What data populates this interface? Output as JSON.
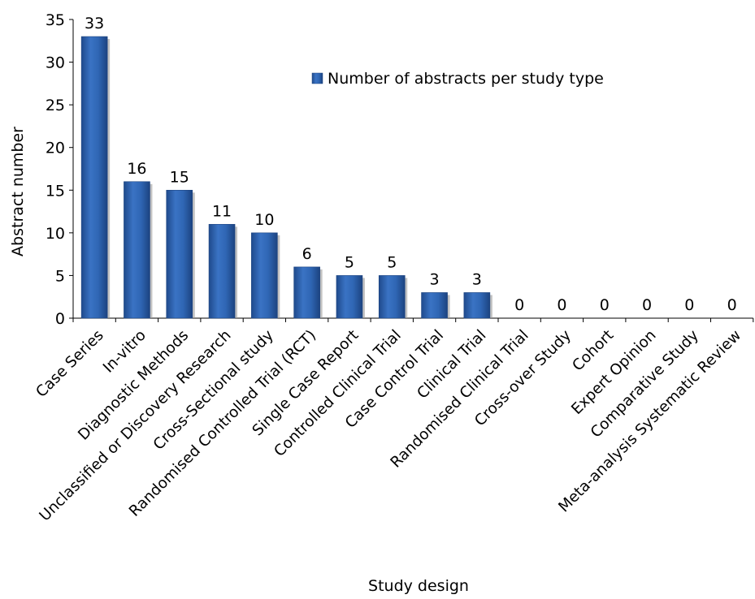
{
  "chart_data": {
    "type": "bar",
    "title": "",
    "xlabel": "Study design",
    "ylabel": "Abstract number",
    "ylim": [
      0,
      35
    ],
    "yticks": [
      0,
      5,
      10,
      15,
      20,
      25,
      30,
      35
    ],
    "grid": false,
    "legend_position": "top-right",
    "bar_color": "#2f62ad",
    "categories": [
      "Case Series",
      "In-vitro",
      "Diagnostic Methods",
      "Unclassified or Discovery Research",
      "Cross-Sectional study",
      "Randomised Controlled Trial (RCT)",
      "Single Case Report",
      "Controlled Clinical Trial",
      "Case Control Trial",
      "Clinical Trial",
      "Randomised Clinical Trial",
      "Cross-over Study",
      "Cohort",
      "Expert Opinion",
      "Comparative Study",
      "Meta-analysis Systematic Review"
    ],
    "series": [
      {
        "name": "Number of abstracts per study type",
        "values": [
          33,
          16,
          15,
          11,
          10,
          6,
          5,
          5,
          3,
          3,
          0,
          0,
          0,
          0,
          0,
          0
        ]
      }
    ]
  }
}
